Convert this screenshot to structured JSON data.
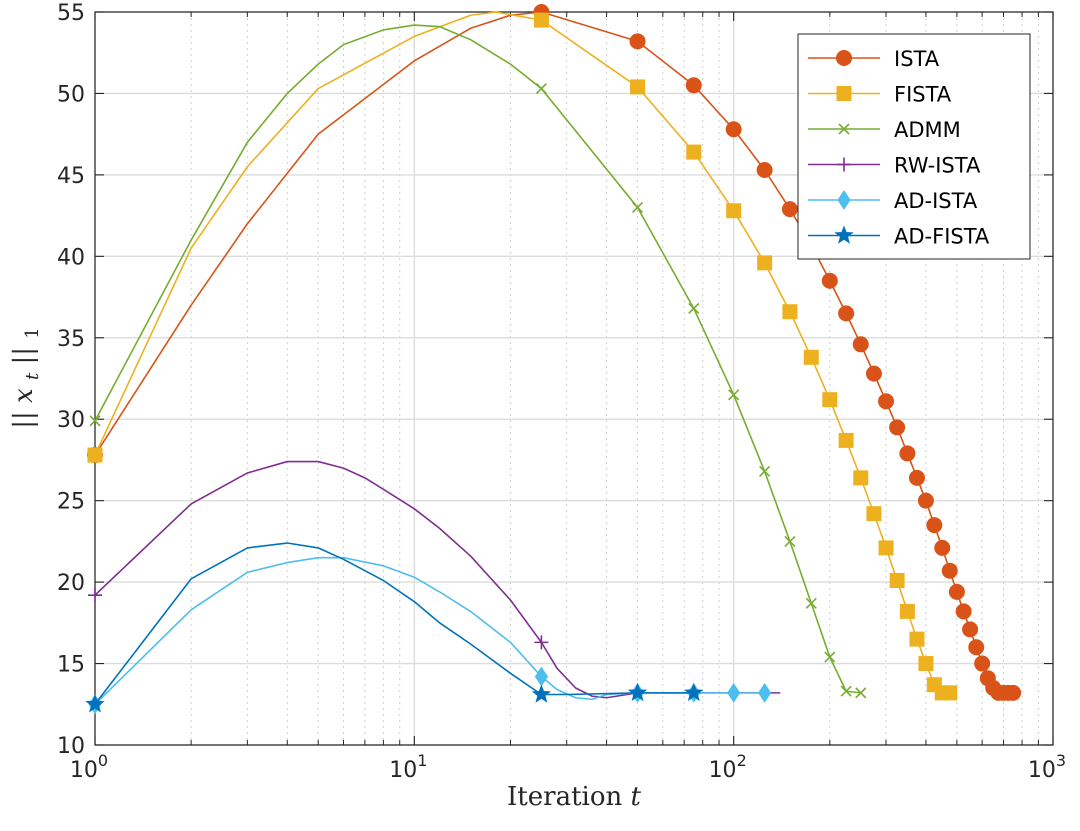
{
  "chart_data": {
    "type": "line",
    "xscale": "log",
    "xlim": [
      1,
      1000
    ],
    "ylim": [
      10,
      55
    ],
    "xlabel": "Iteration",
    "xlabel_var": "t",
    "ylabel": "||x_t||_1",
    "ylabel_parts": {
      "bar_left": "||",
      "var": "x",
      "sub": "t",
      "bar_right": "||",
      "norm": "1"
    },
    "xticks": [
      {
        "value": 1,
        "base": "10",
        "exp": "0"
      },
      {
        "value": 10,
        "base": "10",
        "exp": "1"
      },
      {
        "value": 100,
        "base": "10",
        "exp": "2"
      },
      {
        "value": 1000,
        "base": "10",
        "exp": "3"
      }
    ],
    "yticks": [
      "10",
      "15",
      "20",
      "25",
      "30",
      "35",
      "40",
      "45",
      "50",
      "55"
    ],
    "grid": true,
    "legend_position": "top-right",
    "series": [
      {
        "name": "ISTA",
        "color": "#D95319",
        "marker": "circle",
        "line": [
          [
            1,
            27.8
          ],
          [
            2,
            37
          ],
          [
            3,
            42
          ],
          [
            5,
            47.5
          ],
          [
            10,
            52
          ],
          [
            15,
            54
          ],
          [
            20,
            54.8
          ],
          [
            25,
            55
          ],
          [
            50,
            53.2
          ],
          [
            75,
            50.5
          ],
          [
            100,
            47.8
          ],
          [
            125,
            45.3
          ],
          [
            150,
            42.9
          ],
          [
            175,
            40.7
          ],
          [
            200,
            38.5
          ],
          [
            225,
            36.5
          ],
          [
            250,
            34.6
          ],
          [
            275,
            32.8
          ],
          [
            300,
            31.1
          ],
          [
            325,
            29.5
          ],
          [
            350,
            27.9
          ],
          [
            375,
            26.4
          ],
          [
            400,
            25
          ],
          [
            425,
            23.5
          ],
          [
            450,
            22.1
          ],
          [
            475,
            20.7
          ],
          [
            500,
            19.4
          ],
          [
            525,
            18.2
          ],
          [
            550,
            17.1
          ],
          [
            575,
            16
          ],
          [
            600,
            15
          ],
          [
            625,
            14.1
          ],
          [
            650,
            13.5
          ],
          [
            675,
            13.2
          ],
          [
            700,
            13.2
          ],
          [
            725,
            13.2
          ],
          [
            750,
            13.2
          ]
        ],
        "markers": [
          [
            1,
            27.8
          ],
          [
            25,
            55
          ],
          [
            50,
            53.2
          ],
          [
            75,
            50.5
          ],
          [
            100,
            47.8
          ],
          [
            125,
            45.3
          ],
          [
            150,
            42.9
          ],
          [
            175,
            40.7
          ],
          [
            200,
            38.5
          ],
          [
            225,
            36.5
          ],
          [
            250,
            34.6
          ],
          [
            275,
            32.8
          ],
          [
            300,
            31.1
          ],
          [
            325,
            29.5
          ],
          [
            350,
            27.9
          ],
          [
            375,
            26.4
          ],
          [
            400,
            25
          ],
          [
            425,
            23.5
          ],
          [
            450,
            22.1
          ],
          [
            475,
            20.7
          ],
          [
            500,
            19.4
          ],
          [
            525,
            18.2
          ],
          [
            550,
            17.1
          ],
          [
            575,
            16
          ],
          [
            600,
            15
          ],
          [
            625,
            14.1
          ],
          [
            650,
            13.5
          ],
          [
            675,
            13.2
          ],
          [
            700,
            13.2
          ],
          [
            725,
            13.2
          ],
          [
            750,
            13.2
          ]
        ]
      },
      {
        "name": "FISTA",
        "color": "#EDB120",
        "marker": "square",
        "line": [
          [
            1,
            27.8
          ],
          [
            2,
            40.5
          ],
          [
            3,
            45.5
          ],
          [
            5,
            50.3
          ],
          [
            10,
            53.5
          ],
          [
            15,
            54.8
          ],
          [
            18,
            55
          ],
          [
            25,
            54.5
          ],
          [
            50,
            50.4
          ],
          [
            75,
            46.4
          ],
          [
            100,
            42.8
          ],
          [
            125,
            39.6
          ],
          [
            150,
            36.6
          ],
          [
            175,
            33.8
          ],
          [
            200,
            31.2
          ],
          [
            225,
            28.7
          ],
          [
            250,
            26.4
          ],
          [
            275,
            24.2
          ],
          [
            300,
            22.1
          ],
          [
            325,
            20.1
          ],
          [
            350,
            18.2
          ],
          [
            375,
            16.5
          ],
          [
            400,
            15
          ],
          [
            425,
            13.7
          ],
          [
            450,
            13.2
          ],
          [
            475,
            13.2
          ]
        ],
        "markers": [
          [
            1,
            27.8
          ],
          [
            25,
            54.5
          ],
          [
            50,
            50.4
          ],
          [
            75,
            46.4
          ],
          [
            100,
            42.8
          ],
          [
            125,
            39.6
          ],
          [
            150,
            36.6
          ],
          [
            175,
            33.8
          ],
          [
            200,
            31.2
          ],
          [
            225,
            28.7
          ],
          [
            250,
            26.4
          ],
          [
            275,
            24.2
          ],
          [
            300,
            22.1
          ],
          [
            325,
            20.1
          ],
          [
            350,
            18.2
          ],
          [
            375,
            16.5
          ],
          [
            400,
            15
          ],
          [
            425,
            13.7
          ],
          [
            450,
            13.2
          ],
          [
            475,
            13.2
          ]
        ]
      },
      {
        "name": "ADMM",
        "color": "#77AC30",
        "marker": "x",
        "line": [
          [
            1,
            29.9
          ],
          [
            2,
            41
          ],
          [
            3,
            47
          ],
          [
            4,
            50
          ],
          [
            5,
            51.8
          ],
          [
            6,
            53
          ],
          [
            8,
            53.9
          ],
          [
            10,
            54.2
          ],
          [
            12,
            54.1
          ],
          [
            15,
            53.3
          ],
          [
            20,
            51.8
          ],
          [
            25,
            50.3
          ],
          [
            50,
            43
          ],
          [
            75,
            36.8
          ],
          [
            100,
            31.5
          ],
          [
            125,
            26.8
          ],
          [
            150,
            22.5
          ],
          [
            175,
            18.7
          ],
          [
            200,
            15.4
          ],
          [
            225,
            13.3
          ],
          [
            250,
            13.2
          ]
        ],
        "markers": [
          [
            1,
            29.9
          ],
          [
            25,
            50.3
          ],
          [
            50,
            43
          ],
          [
            75,
            36.8
          ],
          [
            100,
            31.5
          ],
          [
            125,
            26.8
          ],
          [
            150,
            22.5
          ],
          [
            175,
            18.7
          ],
          [
            200,
            15.4
          ],
          [
            225,
            13.3
          ],
          [
            250,
            13.2
          ]
        ]
      },
      {
        "name": "RW-ISTA",
        "color": "#7E2F8E",
        "marker": "plus",
        "line": [
          [
            1,
            19.2
          ],
          [
            2,
            24.8
          ],
          [
            3,
            26.7
          ],
          [
            4,
            27.4
          ],
          [
            5,
            27.4
          ],
          [
            6,
            27
          ],
          [
            7,
            26.4
          ],
          [
            8,
            25.7
          ],
          [
            10,
            24.5
          ],
          [
            12,
            23.3
          ],
          [
            15,
            21.6
          ],
          [
            20,
            18.9
          ],
          [
            25,
            16.3
          ],
          [
            28,
            14.7
          ],
          [
            32,
            13.5
          ],
          [
            36,
            13
          ],
          [
            40,
            12.9
          ],
          [
            50,
            13.2
          ],
          [
            75,
            13.2
          ],
          [
            100,
            13.2
          ],
          [
            125,
            13.2
          ],
          [
            140,
            13.2
          ]
        ],
        "markers": [
          [
            1,
            19.2
          ],
          [
            25,
            16.3
          ],
          [
            50,
            13.2
          ],
          [
            75,
            13.2
          ]
        ]
      },
      {
        "name": "AD-ISTA",
        "color": "#4DBEEE",
        "marker": "diamond",
        "line": [
          [
            1,
            12.5
          ],
          [
            2,
            18.3
          ],
          [
            3,
            20.6
          ],
          [
            4,
            21.2
          ],
          [
            5,
            21.5
          ],
          [
            6,
            21.5
          ],
          [
            8,
            21
          ],
          [
            10,
            20.3
          ],
          [
            12,
            19.4
          ],
          [
            15,
            18.2
          ],
          [
            20,
            16.3
          ],
          [
            25,
            14.2
          ],
          [
            28,
            13.4
          ],
          [
            32,
            12.9
          ],
          [
            36,
            12.8
          ],
          [
            40,
            13.1
          ],
          [
            50,
            13.2
          ],
          [
            75,
            13.2
          ],
          [
            100,
            13.2
          ],
          [
            125,
            13.2
          ]
        ],
        "markers": [
          [
            1,
            12.5
          ],
          [
            25,
            14.2
          ],
          [
            50,
            13.2
          ],
          [
            75,
            13.2
          ],
          [
            100,
            13.2
          ],
          [
            125,
            13.2
          ]
        ]
      },
      {
        "name": "AD-FISTA",
        "color": "#0072BD",
        "marker": "star",
        "line": [
          [
            1,
            12.5
          ],
          [
            2,
            20.2
          ],
          [
            3,
            22.1
          ],
          [
            4,
            22.4
          ],
          [
            5,
            22.1
          ],
          [
            6,
            21.4
          ],
          [
            8,
            20.1
          ],
          [
            10,
            18.8
          ],
          [
            12,
            17.5
          ],
          [
            15,
            16.2
          ],
          [
            20,
            14.4
          ],
          [
            25,
            13.1
          ],
          [
            30,
            13.1
          ],
          [
            50,
            13.2
          ],
          [
            75,
            13.2
          ]
        ],
        "markers": [
          [
            1,
            12.5
          ],
          [
            25,
            13.1
          ],
          [
            50,
            13.2
          ],
          [
            75,
            13.2
          ]
        ]
      }
    ]
  }
}
